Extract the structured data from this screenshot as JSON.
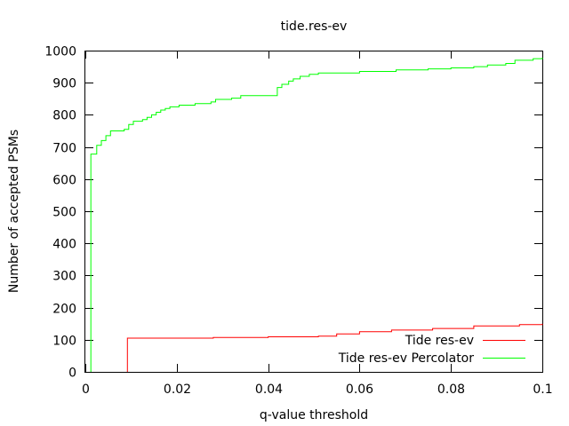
{
  "chart_data": {
    "type": "line",
    "title": "tide.res-ev",
    "xlabel": "q-value threshold",
    "ylabel": "Number of accepted PSMs",
    "xlim": [
      0,
      0.1
    ],
    "ylim": [
      0,
      1000
    ],
    "xticks": [
      0,
      0.02,
      0.04,
      0.06,
      0.08,
      0.1
    ],
    "xtick_labels": [
      "0",
      "0.02",
      "0.04",
      "0.06",
      "0.08",
      "0.1"
    ],
    "yticks": [
      0,
      100,
      200,
      300,
      400,
      500,
      600,
      700,
      800,
      900,
      1000
    ],
    "ytick_labels": [
      "0",
      "100",
      "200",
      "300",
      "400",
      "500",
      "600",
      "700",
      "800",
      "900",
      "1000"
    ],
    "grid": false,
    "legend_position": "bottom-right",
    "series": [
      {
        "name": "Tide res-ev",
        "color": "#ff0000",
        "step": true,
        "x": [
          0.0092,
          0.0092,
          0.028,
          0.04,
          0.051,
          0.055,
          0.06,
          0.067,
          0.076,
          0.085,
          0.095,
          0.1
        ],
        "y": [
          0,
          105,
          107,
          109,
          111,
          118,
          125,
          130,
          135,
          143,
          147,
          150
        ]
      },
      {
        "name": "Tide res-ev Percolator",
        "color": "#00ff00",
        "step": true,
        "x": [
          0.0012,
          0.0012,
          0.0025,
          0.0035,
          0.0045,
          0.0055,
          0.0085,
          0.0095,
          0.0105,
          0.0125,
          0.0135,
          0.0145,
          0.0155,
          0.0165,
          0.0175,
          0.0185,
          0.0205,
          0.024,
          0.0275,
          0.0285,
          0.032,
          0.034,
          0.042,
          0.043,
          0.0445,
          0.0455,
          0.047,
          0.049,
          0.051,
          0.06,
          0.068,
          0.075,
          0.08,
          0.085,
          0.088,
          0.092,
          0.094,
          0.098,
          0.1
        ],
        "y": [
          0,
          678,
          705,
          720,
          735,
          750,
          755,
          770,
          780,
          785,
          792,
          800,
          808,
          815,
          820,
          825,
          830,
          835,
          840,
          848,
          852,
          860,
          885,
          895,
          905,
          912,
          920,
          926,
          930,
          935,
          940,
          943,
          946,
          950,
          955,
          960,
          970,
          975,
          978
        ]
      }
    ]
  }
}
